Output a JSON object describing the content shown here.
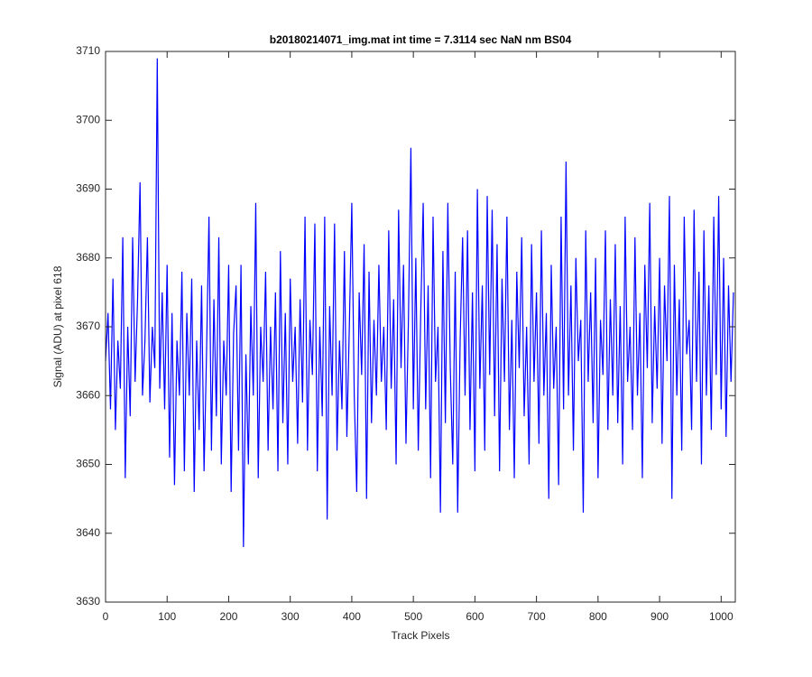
{
  "chart_data": {
    "type": "line",
    "title": "b20180214071_img.mat int time = 7.3114 sec  NaN nm BS04",
    "x_label": "Track Pixels",
    "y_label": "Signal (ADU) at pixel 618",
    "color": "#0000ff",
    "xlim": [
      0,
      1023
    ],
    "ylim": [
      3630,
      3710
    ],
    "xticks": [
      0,
      100,
      200,
      300,
      400,
      500,
      600,
      700,
      800,
      900,
      1000
    ],
    "yticks": [
      3630,
      3640,
      3650,
      3660,
      3670,
      3680,
      3690,
      3700,
      3710
    ],
    "x": [
      0,
      4,
      8,
      12,
      16,
      20,
      24,
      28,
      32,
      36,
      40,
      44,
      48,
      52,
      56,
      60,
      64,
      68,
      72,
      76,
      80,
      84,
      88,
      92,
      96,
      100,
      104,
      108,
      112,
      116,
      120,
      124,
      128,
      132,
      136,
      140,
      144,
      148,
      152,
      156,
      160,
      164,
      168,
      172,
      176,
      180,
      184,
      188,
      192,
      196,
      200,
      204,
      208,
      212,
      216,
      220,
      224,
      228,
      232,
      236,
      240,
      244,
      248,
      252,
      256,
      260,
      264,
      268,
      272,
      276,
      280,
      284,
      288,
      292,
      296,
      300,
      304,
      308,
      312,
      316,
      320,
      324,
      328,
      332,
      336,
      340,
      344,
      348,
      352,
      356,
      360,
      364,
      368,
      372,
      376,
      380,
      384,
      388,
      392,
      396,
      400,
      404,
      408,
      412,
      416,
      420,
      424,
      428,
      432,
      436,
      440,
      444,
      448,
      452,
      456,
      460,
      464,
      468,
      472,
      476,
      480,
      484,
      488,
      492,
      496,
      500,
      504,
      508,
      512,
      516,
      520,
      524,
      528,
      532,
      536,
      540,
      544,
      548,
      552,
      556,
      560,
      564,
      568,
      572,
      576,
      580,
      584,
      588,
      592,
      596,
      600,
      604,
      608,
      612,
      616,
      620,
      624,
      628,
      632,
      636,
      640,
      644,
      648,
      652,
      656,
      660,
      664,
      668,
      672,
      676,
      680,
      684,
      688,
      692,
      696,
      700,
      704,
      708,
      712,
      716,
      720,
      724,
      728,
      732,
      736,
      740,
      744,
      748,
      752,
      756,
      760,
      764,
      768,
      772,
      776,
      780,
      784,
      788,
      792,
      796,
      800,
      804,
      808,
      812,
      816,
      820,
      824,
      828,
      832,
      836,
      840,
      844,
      848,
      852,
      856,
      860,
      864,
      868,
      872,
      876,
      880,
      884,
      888,
      892,
      896,
      900,
      904,
      908,
      912,
      916,
      920,
      924,
      928,
      932,
      936,
      940,
      944,
      948,
      952,
      956,
      960,
      964,
      968,
      972,
      976,
      980,
      984,
      988,
      992,
      996,
      1000,
      1004,
      1008,
      1012,
      1016,
      1020
    ],
    "values": [
      3665,
      3672,
      3658,
      3677,
      3655,
      3668,
      3661,
      3683,
      3648,
      3670,
      3657,
      3683,
      3662,
      3674,
      3691,
      3660,
      3668,
      3683,
      3659,
      3670,
      3664,
      3709,
      3661,
      3675,
      3658,
      3679,
      3651,
      3672,
      3647,
      3668,
      3660,
      3678,
      3649,
      3672,
      3660,
      3677,
      3646,
      3668,
      3655,
      3676,
      3649,
      3666,
      3686,
      3652,
      3674,
      3657,
      3683,
      3650,
      3668,
      3660,
      3679,
      3646,
      3669,
      3676,
      3652,
      3679,
      3638,
      3666,
      3650,
      3673,
      3660,
      3688,
      3648,
      3670,
      3662,
      3678,
      3652,
      3670,
      3658,
      3675,
      3649,
      3681,
      3656,
      3672,
      3650,
      3677,
      3662,
      3670,
      3653,
      3674,
      3659,
      3686,
      3652,
      3671,
      3663,
      3685,
      3649,
      3670,
      3657,
      3686,
      3642,
      3673,
      3660,
      3685,
      3652,
      3668,
      3658,
      3681,
      3654,
      3670,
      3688,
      3660,
      3646,
      3675,
      3663,
      3682,
      3645,
      3678,
      3656,
      3671,
      3660,
      3679,
      3662,
      3670,
      3655,
      3684,
      3661,
      3674,
      3650,
      3687,
      3664,
      3679,
      3653,
      3671,
      3696,
      3658,
      3680,
      3652,
      3672,
      3688,
      3658,
      3676,
      3648,
      3686,
      3662,
      3670,
      3643,
      3681,
      3656,
      3688,
      3664,
      3650,
      3678,
      3643,
      3668,
      3683,
      3660,
      3684,
      3655,
      3675,
      3649,
      3690,
      3661,
      3676,
      3652,
      3689,
      3663,
      3687,
      3657,
      3682,
      3649,
      3677,
      3662,
      3686,
      3655,
      3671,
      3648,
      3678,
      3664,
      3683,
      3657,
      3670,
      3650,
      3682,
      3662,
      3675,
      3653,
      3684,
      3660,
      3672,
      3645,
      3679,
      3661,
      3670,
      3647,
      3686,
      3658,
      3694,
      3660,
      3676,
      3652,
      3680,
      3665,
      3671,
      3643,
      3684,
      3662,
      3675,
      3656,
      3680,
      3648,
      3671,
      3663,
      3684,
      3655,
      3674,
      3660,
      3682,
      3656,
      3673,
      3650,
      3686,
      3662,
      3670,
      3655,
      3683,
      3660,
      3672,
      3648,
      3679,
      3664,
      3688,
      3656,
      3673,
      3661,
      3680,
      3653,
      3676,
      3665,
      3689,
      3645,
      3679,
      3660,
      3674,
      3652,
      3686,
      3666,
      3671,
      3655,
      3687,
      3662,
      3678,
      3650,
      3684,
      3660,
      3676,
      3655,
      3686,
      3663,
      3689,
      3658,
      3680,
      3654,
      3676,
      3662,
      3675
    ]
  }
}
